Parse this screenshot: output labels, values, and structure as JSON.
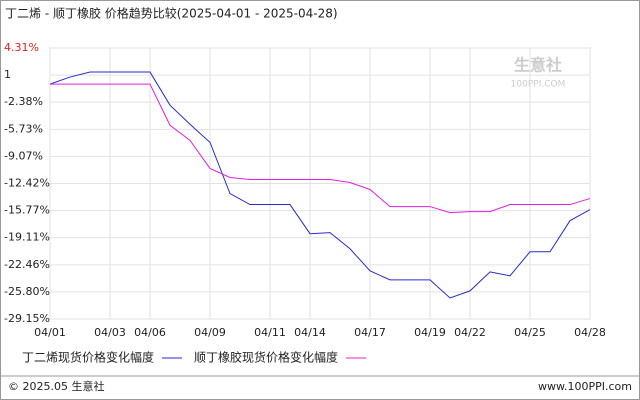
{
  "chart_data": {
    "type": "line",
    "title": "丁二烯 - 顺丁橡胶 价格趋势比较(2025-04-01 - 2025-04-28)",
    "categories": [
      "04/01",
      null,
      null,
      "04/03",
      null,
      "04/06",
      null,
      null,
      "04/09",
      null,
      null,
      "04/11",
      null,
      "04/14",
      null,
      null,
      "04/17",
      null,
      null,
      "04/19",
      null,
      "04/22",
      null,
      null,
      "04/25",
      null,
      null,
      "04/28"
    ],
    "series": [
      {
        "name": "丁二烯现货价格变化幅度",
        "color": "#2a2acc",
        "values": [
          -0.15,
          0.72,
          1.34,
          1.34,
          1.34,
          1.34,
          -2.75,
          -5.11,
          -7.34,
          -13.66,
          -15.02,
          -15.02,
          -15.02,
          -18.62,
          -18.49,
          -20.48,
          -23.2,
          -24.32,
          -24.32,
          -24.32,
          -26.55,
          -25.68,
          -23.33,
          -23.82,
          -20.85,
          -20.85,
          -17.01,
          -15.64
        ]
      },
      {
        "name": "顺丁橡胶现货价格变化幅度",
        "color": "#e020e0",
        "values": [
          -0.15,
          -0.15,
          -0.15,
          -0.15,
          -0.15,
          -0.15,
          -5.23,
          -7.09,
          -10.56,
          -11.68,
          -11.92,
          -11.92,
          -11.92,
          -11.92,
          -11.92,
          -12.3,
          -13.16,
          -15.27,
          -15.27,
          -15.27,
          -16.01,
          -15.89,
          -15.89,
          -15.02,
          -15.02,
          -15.02,
          -15.02,
          -14.28
        ]
      }
    ],
    "ylim": [
      -29.15,
      4.31
    ],
    "yticks": [
      {
        "value": 4.31,
        "label": "4.31%"
      },
      {
        "value": 0.96,
        "label": "1"
      },
      {
        "value": -2.38,
        "label": "-2.38%"
      },
      {
        "value": -5.73,
        "label": "-5.73%"
      },
      {
        "value": -9.07,
        "label": "-9.07%"
      },
      {
        "value": -12.42,
        "label": "-12.42%"
      },
      {
        "value": -15.77,
        "label": "-15.77%"
      },
      {
        "value": -19.11,
        "label": "-19.11%"
      },
      {
        "value": -22.46,
        "label": "-22.46%"
      },
      {
        "value": -25.8,
        "label": "-25.80%"
      },
      {
        "value": -29.15,
        "label": "-29.15%"
      }
    ],
    "grid": true,
    "watermark": [
      "生意社",
      "100PPI.COM"
    ],
    "footer_left": "© 2025.05 生意社",
    "footer_right": "www.100PPI.com"
  }
}
